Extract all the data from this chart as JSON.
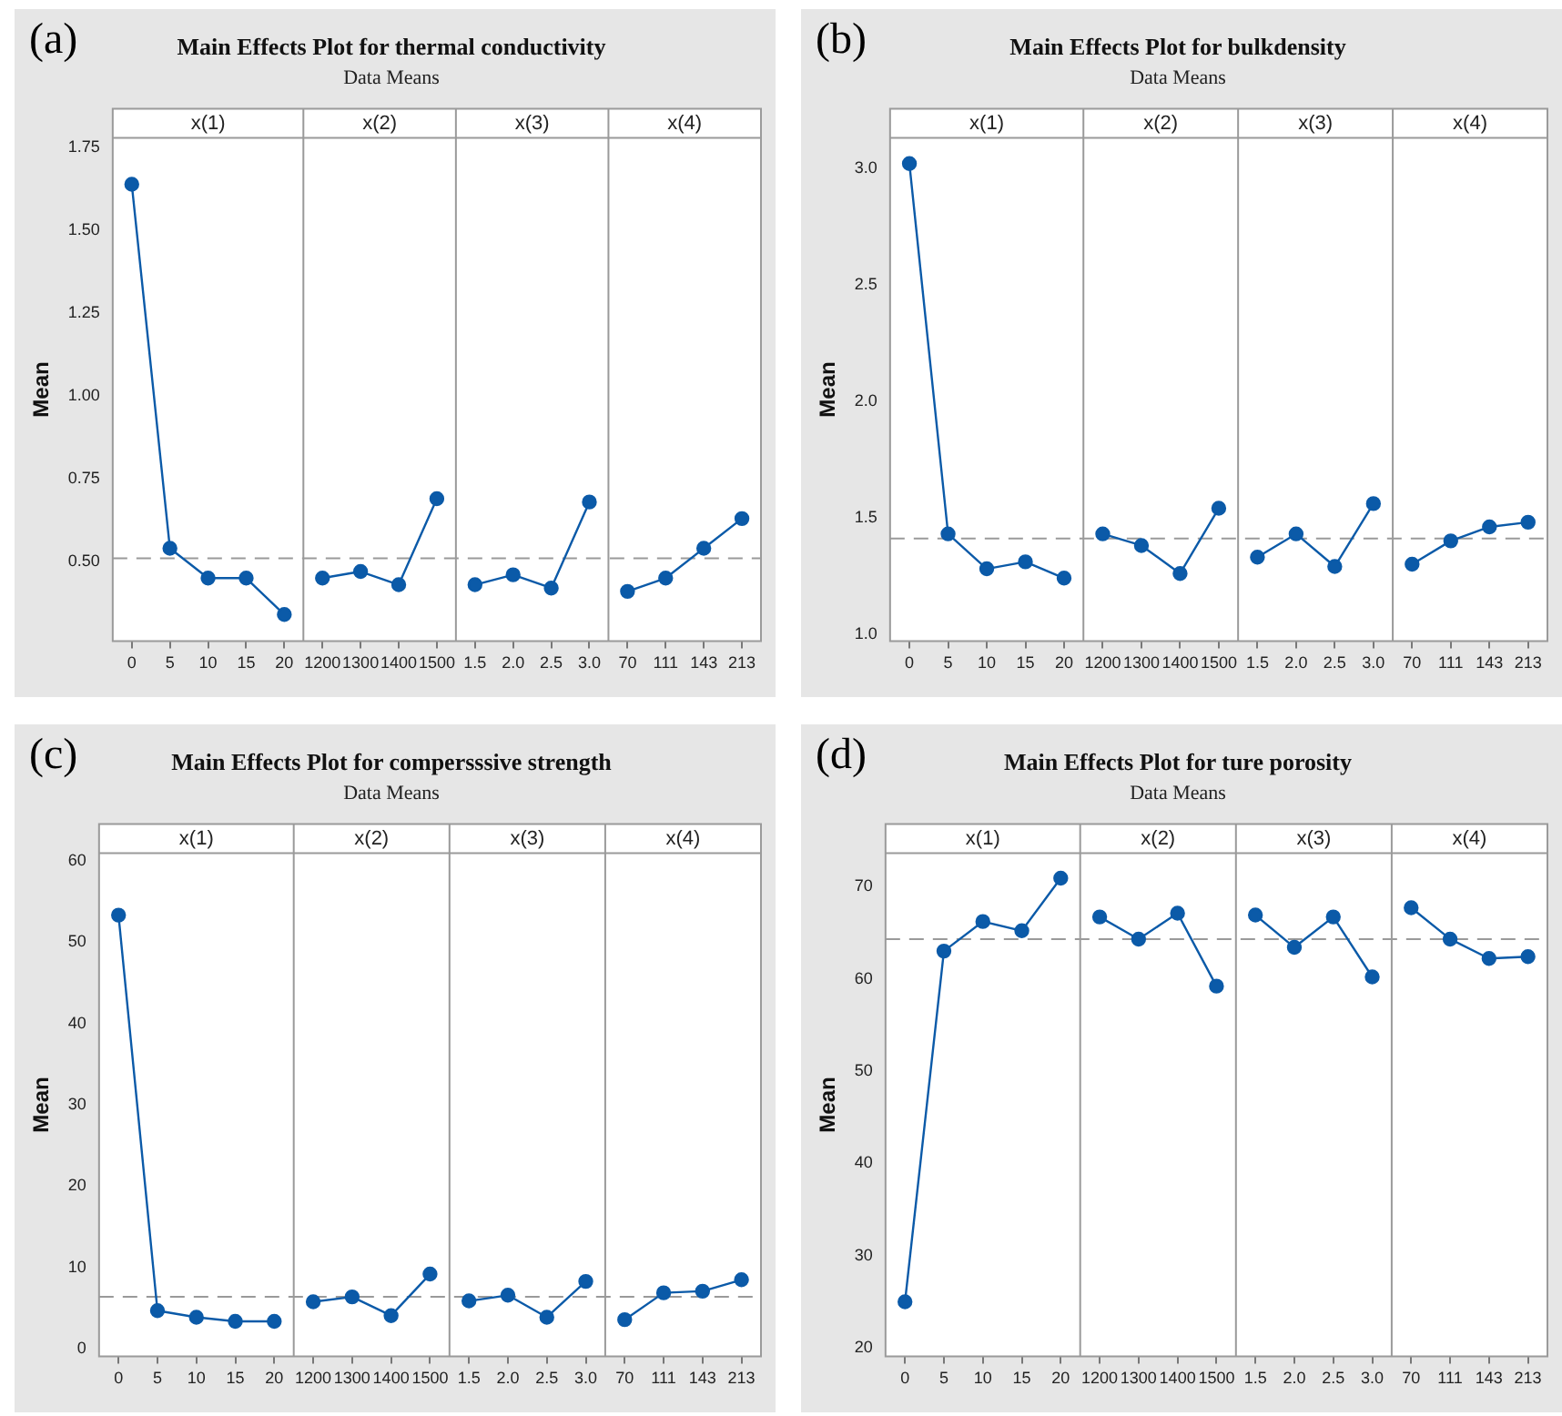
{
  "chart_data": [
    {
      "type": "line",
      "title": "Main Effects Plot for thermal conductivity",
      "subtitle": "Data Means",
      "ylabel": "Mean",
      "annotations": [
        "(a)",
        "x(1)",
        "x(2)",
        "x(3)",
        "x(4)"
      ],
      "marker": "circle",
      "categories": [
        "0",
        "5",
        "10",
        "15",
        "20",
        "1200",
        "1300",
        "1400",
        "1500",
        "1.5",
        "2.0",
        "2.5",
        "3.0",
        "70",
        "111",
        "143",
        "213"
      ],
      "series": [
        {
          "color": "#0b5aa8",
          "values": [
            1.64,
            0.54,
            0.45,
            0.45,
            0.34,
            null,
            null,
            null,
            null,
            null,
            null,
            null,
            null,
            null,
            null,
            null,
            null
          ]
        },
        {
          "color": "#0b5aa8",
          "values": [
            null,
            null,
            null,
            null,
            null,
            0.45,
            0.47,
            0.43,
            0.69,
            null,
            null,
            null,
            null,
            null,
            null,
            null,
            null
          ]
        },
        {
          "color": "#0b5aa8",
          "values": [
            null,
            null,
            null,
            null,
            null,
            null,
            null,
            null,
            null,
            0.43,
            0.46,
            0.42,
            0.68,
            null,
            null,
            null,
            null
          ]
        },
        {
          "color": "#0b5aa8",
          "values": [
            null,
            null,
            null,
            null,
            null,
            null,
            null,
            null,
            null,
            null,
            null,
            null,
            null,
            0.41,
            0.45,
            0.54,
            0.63
          ]
        }
      ],
      "ylim": [
        0.26,
        1.78
      ],
      "yticks": [
        {
          "value": 0.5,
          "label": "0.50"
        },
        {
          "value": 0.75,
          "label": "0.75"
        },
        {
          "value": 1.0,
          "label": "1.00"
        },
        {
          "value": 1.25,
          "label": "1.25"
        },
        {
          "value": 1.5,
          "label": "1.50"
        },
        {
          "value": 1.75,
          "label": "1.75"
        }
      ],
      "ref_lines": [
        {
          "axis": "y",
          "value": 0.51,
          "line_style": "dashed",
          "color": "#9a9a9a"
        }
      ]
    },
    {
      "type": "line",
      "title": "Main Effects Plot for bulkdensity",
      "subtitle": "Data Means",
      "ylabel": "Mean",
      "annotations": [
        "(b)",
        "x(1)",
        "x(2)",
        "x(3)",
        "x(4)"
      ],
      "marker": "circle",
      "categories": [
        "0",
        "5",
        "10",
        "15",
        "20",
        "1200",
        "1300",
        "1400",
        "1500",
        "1.5",
        "2.0",
        "2.5",
        "3.0",
        "70",
        "111",
        "143",
        "213"
      ],
      "series": [
        {
          "color": "#0b5aa8",
          "values": [
            3.02,
            1.43,
            1.28,
            1.31,
            1.24,
            null,
            null,
            null,
            null,
            null,
            null,
            null,
            null,
            null,
            null,
            null,
            null
          ]
        },
        {
          "color": "#0b5aa8",
          "values": [
            null,
            null,
            null,
            null,
            null,
            1.43,
            1.38,
            1.26,
            1.54,
            null,
            null,
            null,
            null,
            null,
            null,
            null,
            null
          ]
        },
        {
          "color": "#0b5aa8",
          "values": [
            null,
            null,
            null,
            null,
            null,
            null,
            null,
            null,
            null,
            1.33,
            1.43,
            1.29,
            1.56,
            null,
            null,
            null,
            null
          ]
        },
        {
          "color": "#0b5aa8",
          "values": [
            null,
            null,
            null,
            null,
            null,
            null,
            null,
            null,
            null,
            null,
            null,
            null,
            null,
            1.3,
            1.4,
            1.46,
            1.48
          ]
        }
      ],
      "ylim": [
        0.97,
        3.13
      ],
      "yticks": [
        {
          "value": 1.0,
          "label": "1.0"
        },
        {
          "value": 1.5,
          "label": "1.5"
        },
        {
          "value": 2.0,
          "label": "2.0"
        },
        {
          "value": 2.5,
          "label": "2.5"
        },
        {
          "value": 3.0,
          "label": "3.0"
        }
      ],
      "ref_lines": [
        {
          "axis": "y",
          "value": 1.41,
          "line_style": "dashed",
          "color": "#9a9a9a"
        }
      ]
    },
    {
      "type": "line",
      "title": "Main Effects Plot for compersssive strength",
      "subtitle": "Data Means",
      "ylabel": "Mean",
      "annotations": [
        "(c)",
        "x(1)",
        "x(2)",
        "x(3)",
        "x(4)"
      ],
      "marker": "circle",
      "categories": [
        "0",
        "5",
        "10",
        "15",
        "20",
        "1200",
        "1300",
        "1400",
        "1500",
        "1.5",
        "2.0",
        "2.5",
        "3.0",
        "70",
        "111",
        "143",
        "213"
      ],
      "series": [
        {
          "color": "#0b5aa8",
          "values": [
            53.3,
            4.7,
            3.9,
            3.4,
            3.4,
            null,
            null,
            null,
            null,
            null,
            null,
            null,
            null,
            null,
            null,
            null,
            null
          ]
        },
        {
          "color": "#0b5aa8",
          "values": [
            null,
            null,
            null,
            null,
            null,
            5.8,
            6.4,
            4.1,
            9.2,
            null,
            null,
            null,
            null,
            null,
            null,
            null,
            null
          ]
        },
        {
          "color": "#0b5aa8",
          "values": [
            null,
            null,
            null,
            null,
            null,
            null,
            null,
            null,
            null,
            5.9,
            6.6,
            3.9,
            8.3,
            null,
            null,
            null,
            null
          ]
        },
        {
          "color": "#0b5aa8",
          "values": [
            null,
            null,
            null,
            null,
            null,
            null,
            null,
            null,
            null,
            null,
            null,
            null,
            null,
            3.6,
            6.9,
            7.1,
            8.5
          ]
        }
      ],
      "ylim": [
        -0.9,
        60.9
      ],
      "yticks": [
        0,
        10,
        20,
        30,
        40,
        50,
        60
      ],
      "ref_lines": [
        {
          "axis": "y",
          "value": 6.4,
          "line_style": "dashed",
          "color": "#9a9a9a"
        }
      ]
    },
    {
      "type": "line",
      "title": "Main Effects Plot for ture porosity",
      "subtitle": "Data Means",
      "ylabel": "Mean",
      "annotations": [
        "(d)",
        "x(1)",
        "x(2)",
        "x(3)",
        "x(4)"
      ],
      "marker": "circle",
      "categories": [
        "0",
        "5",
        "10",
        "15",
        "20",
        "1200",
        "1300",
        "1400",
        "1500",
        "1.5",
        "2.0",
        "2.5",
        "3.0",
        "70",
        "111",
        "143",
        "213"
      ],
      "series": [
        {
          "color": "#0b5aa8",
          "values": [
            25.0,
            63.0,
            66.2,
            65.2,
            70.9,
            null,
            null,
            null,
            null,
            null,
            null,
            null,
            null,
            null,
            null,
            null,
            null
          ]
        },
        {
          "color": "#0b5aa8",
          "values": [
            null,
            null,
            null,
            null,
            null,
            66.7,
            64.3,
            67.1,
            59.2,
            null,
            null,
            null,
            null,
            null,
            null,
            null,
            null
          ]
        },
        {
          "color": "#0b5aa8",
          "values": [
            null,
            null,
            null,
            null,
            null,
            null,
            null,
            null,
            null,
            66.9,
            63.4,
            66.7,
            60.2,
            null,
            null,
            null,
            null
          ]
        },
        {
          "color": "#0b5aa8",
          "values": [
            null,
            null,
            null,
            null,
            null,
            null,
            null,
            null,
            null,
            null,
            null,
            null,
            null,
            67.7,
            64.3,
            62.2,
            62.4
          ]
        }
      ],
      "ylim": [
        19.1,
        73.6
      ],
      "yticks": [
        20,
        30,
        40,
        50,
        60,
        70
      ],
      "ref_lines": [
        {
          "axis": "y",
          "value": 64.3,
          "line_style": "dashed",
          "color": "#9a9a9a"
        }
      ]
    }
  ]
}
